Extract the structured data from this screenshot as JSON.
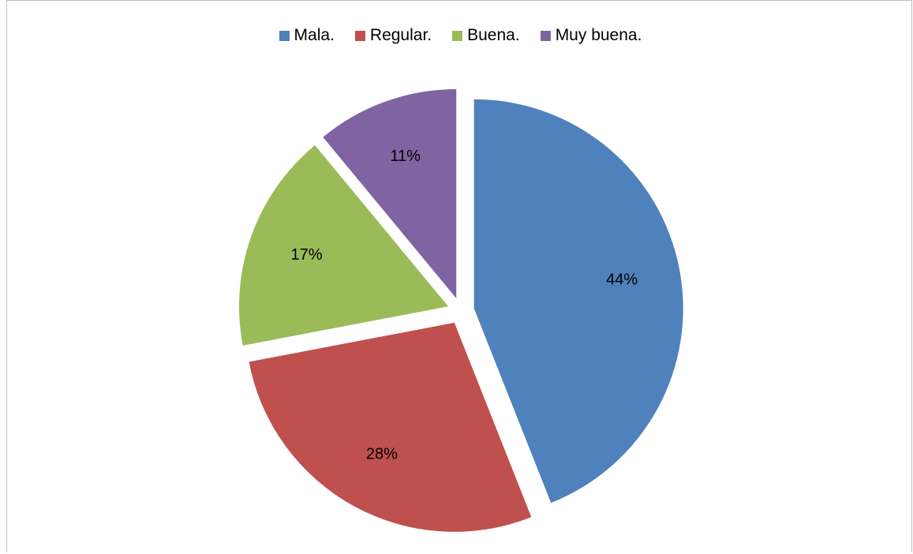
{
  "chart_data": {
    "type": "pie",
    "title": "",
    "legend_placement": "top",
    "slices": [
      {
        "name": "Mala.",
        "value": 44,
        "label": "44%",
        "color": "#4F81BD"
      },
      {
        "name": "Regular.",
        "value": 28,
        "label": "28%",
        "color": "#C0504D"
      },
      {
        "name": "Buena.",
        "value": 17,
        "label": "17%",
        "color": "#9BBB59"
      },
      {
        "name": "Muy buena.",
        "value": 11,
        "label": "11%",
        "color": "#8064A2"
      }
    ]
  }
}
